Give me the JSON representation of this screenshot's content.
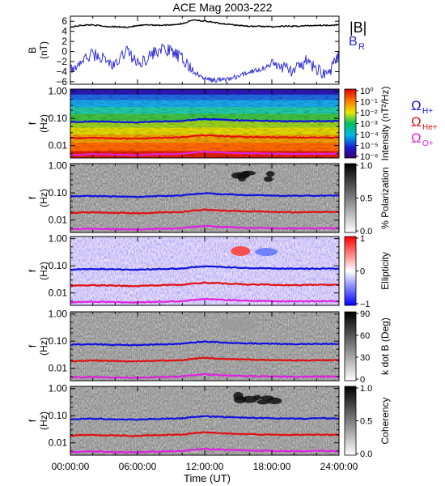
{
  "title": "ACE Mag 2003-222",
  "xaxis": {
    "label": "Time (UT)",
    "ticks": [
      "00:00:00",
      "06:00:00",
      "12:00:00",
      "18:00:00",
      "24:00:00"
    ],
    "range_hours": [
      0,
      24
    ]
  },
  "colors": {
    "btotal": "#000000",
    "br": "#1f1fd6",
    "h_plus": "#1010e0",
    "he_plus": "#e01010",
    "o_plus": "#e020e0"
  },
  "chart_data": [
    {
      "type": "line",
      "panel": "magnetic-field",
      "ylabel": "B (nT)",
      "ylim": [
        -6.5,
        7
      ],
      "yticks": [
        6,
        4,
        2,
        0,
        -2,
        -4,
        -6
      ],
      "legend_position": "right",
      "series": [
        {
          "name": "|B|",
          "x_hours": [
            0,
            1,
            2,
            3,
            4,
            5,
            6,
            7,
            8,
            9,
            10,
            11,
            12,
            13,
            14,
            15,
            16,
            17,
            18,
            19,
            20,
            21,
            22,
            23,
            24
          ],
          "values": [
            4.8,
            5.2,
            5.3,
            5.0,
            4.9,
            4.8,
            5.1,
            5.3,
            5.2,
            5.3,
            5.5,
            6.3,
            6.0,
            5.7,
            5.4,
            5.2,
            5.0,
            5.0,
            4.9,
            5.0,
            5.0,
            5.1,
            5.2,
            5.2,
            5.3
          ]
        },
        {
          "name": "B_R",
          "x_hours": [
            0,
            1,
            2,
            3,
            4,
            5,
            6,
            7,
            8,
            9,
            10,
            11,
            12,
            13,
            14,
            15,
            16,
            17,
            18,
            19,
            20,
            21,
            22,
            23,
            24
          ],
          "values": [
            -4.0,
            -2.0,
            -0.5,
            -1.5,
            -3.0,
            0.5,
            -2.5,
            -1.0,
            0.5,
            0.0,
            -1.5,
            -4.0,
            -5.5,
            -5.7,
            -5.5,
            -5.0,
            -4.0,
            -3.5,
            -2.5,
            -3.0,
            -4.0,
            -2.0,
            -3.5,
            -4.5,
            -1.0
          ]
        }
      ]
    },
    {
      "type": "heatmap",
      "panel": "intensity",
      "ylabel": "f (Hz)",
      "yticks": [
        "1.00",
        "0.10",
        "0.01"
      ],
      "ylim_hz": [
        0.0035,
        1.2
      ],
      "colorbar": {
        "label": "Intensity (nT²/Hz)",
        "ticks": [
          "10⁰",
          "10⁻¹",
          "10⁻²",
          "10⁻³",
          "10⁻⁴",
          "10⁻⁵",
          "10⁻⁶"
        ],
        "range": [
          1e-06,
          1
        ]
      },
      "legend": [
        "ΩH+",
        "ΩHe+",
        "ΩO+"
      ]
    },
    {
      "type": "heatmap",
      "panel": "polarization",
      "ylabel": "f (Hz)",
      "yticks": [
        "1.00",
        "0.10",
        "0.01"
      ],
      "colorbar": {
        "label": "% Polarization",
        "ticks": [
          "1.0",
          "0.5",
          "0.0"
        ],
        "range": [
          0,
          1
        ]
      }
    },
    {
      "type": "heatmap",
      "panel": "ellipticity",
      "ylabel": "f (Hz)",
      "yticks": [
        "1.00",
        "0.10",
        "0.01"
      ],
      "colorbar": {
        "label": "Ellipticity",
        "ticks": [
          "1",
          "0",
          "−1"
        ],
        "range": [
          -1,
          1
        ]
      }
    },
    {
      "type": "heatmap",
      "panel": "k-dot-b",
      "ylabel": "f (Hz)",
      "yticks": [
        "1.00",
        "0.10",
        "0.01"
      ],
      "colorbar": {
        "label": "k dot B (Deg)",
        "ticks": [
          "90",
          "60",
          "30",
          "0"
        ],
        "range": [
          0,
          90
        ]
      }
    },
    {
      "type": "heatmap",
      "panel": "coherency",
      "ylabel": "f (Hz)",
      "yticks": [
        "1.00",
        "0.10",
        "0.01"
      ],
      "colorbar": {
        "label": "Coherency",
        "ticks": [
          "1.0",
          "0.5",
          "0.0"
        ],
        "range": [
          0,
          1
        ]
      }
    }
  ],
  "gyrofrequencies": {
    "x_hours": [
      0,
      2,
      4,
      6,
      8,
      10,
      11,
      12,
      13,
      14,
      16,
      18,
      20,
      22,
      24
    ],
    "h_plus_hz": [
      0.074,
      0.077,
      0.074,
      0.072,
      0.077,
      0.08,
      0.09,
      0.096,
      0.092,
      0.088,
      0.083,
      0.08,
      0.078,
      0.079,
      0.08
    ],
    "he_plus_hz": [
      0.0185,
      0.0193,
      0.0185,
      0.018,
      0.0193,
      0.02,
      0.0225,
      0.024,
      0.023,
      0.022,
      0.0208,
      0.02,
      0.0195,
      0.0198,
      0.02
    ],
    "o_plus_hz": [
      0.0046,
      0.0048,
      0.0046,
      0.0045,
      0.0048,
      0.005,
      0.0056,
      0.006,
      0.0057,
      0.0055,
      0.0052,
      0.005,
      0.0049,
      0.005,
      0.005
    ]
  }
}
